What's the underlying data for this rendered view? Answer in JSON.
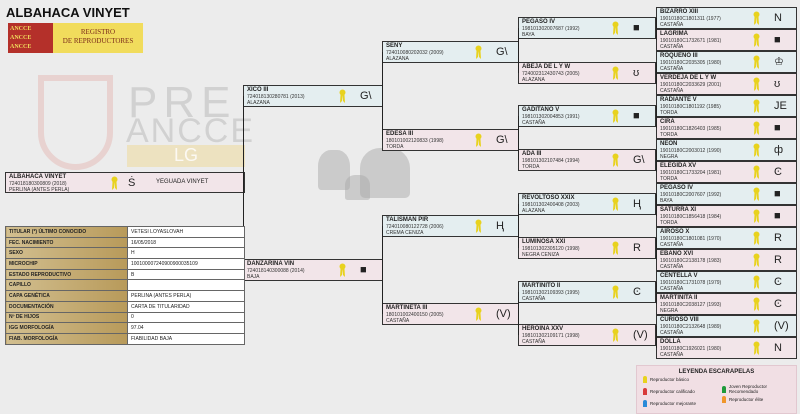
{
  "title": "ALBAHACA VINYET",
  "logo": {
    "flags": [
      "ANCCE",
      "ANCCE",
      "ANCCE"
    ],
    "line1": "REGISTRO",
    "line2": "DE REPRODUCTORES"
  },
  "watermark": {
    "pre": "PRE",
    "ancce": "ANCCE",
    "lg": "LG"
  },
  "subject": {
    "name": "ALBAHACA VINYET",
    "reg": "724018180300809 (2018)",
    "coat": "PERLINA (ANTES PERLA)",
    "brand": "s",
    "breeder": "YEGUADA VINYET",
    "sex": "f"
  },
  "info": [
    {
      "k": "TITULAR (*) ÚLTIMO CONOCIDO",
      "v": "VETESI LOYASLOVAH"
    },
    {
      "k": "FEC. NACIMIENTO",
      "v": "16/05/2018"
    },
    {
      "k": "SEXO",
      "v": "H"
    },
    {
      "k": "MICROCHIP",
      "v": "100100007240900900035109"
    },
    {
      "k": "ESTADO REPRODUCTIVO",
      "v": "B"
    },
    {
      "k": "CAPILLO",
      "v": ""
    },
    {
      "k": "CAPA GENÉTICA",
      "v": "PERLINA (ANTES PERLA)"
    },
    {
      "k": "DOCUMENTACIÓN",
      "v": "CARTA DE TITULARIDAD"
    },
    {
      "k": "Nº DE HIJOS",
      "v": "0"
    },
    {
      "k": "IGG MORFOLOGÍA",
      "v": "97.04"
    },
    {
      "k": "FIAB. MORFOLOGÍA",
      "v": "FIABILIDAD BAJA"
    }
  ],
  "gen1": [
    {
      "name": "XICO III",
      "reg": "724018130280781 (2013)",
      "coat": "ALAZANA",
      "brand": "ga",
      "sex": "m"
    },
    {
      "name": "DANZARINA VIN",
      "reg": "724018140300088 (2014)",
      "coat": "BAJA",
      "brand": "square",
      "sex": "f"
    }
  ],
  "gen2": [
    {
      "name": "SENY",
      "reg": "724010080202032 (2009)",
      "coat": "ALAZANA",
      "brand": "ga",
      "sex": "m"
    },
    {
      "name": "EDESA III",
      "reg": "180101002120833 (1998)",
      "coat": "TORDA",
      "brand": "ga",
      "sex": "f"
    },
    {
      "name": "TALISMAN PIR",
      "reg": "724010080122728 (2006)",
      "coat": "CREMA CENIZA",
      "brand": "h",
      "sex": "m"
    },
    {
      "name": "MARTINETA III",
      "reg": "180101002400150 (2005)",
      "coat": "CASTAÑA",
      "brand": "v2",
      "sex": "f"
    }
  ],
  "gen3": [
    {
      "name": "PEGASO IV",
      "reg": "198101302007687 (1992)",
      "coat": "BAYA",
      "brand": "square",
      "sex": "m"
    },
    {
      "name": "ABEJA DE L Y W",
      "reg": "724002312430743 (2005)",
      "coat": "ALAZANA",
      "brand": "lyre",
      "sex": "f"
    },
    {
      "name": "GADITANO V",
      "reg": "198101302004853 (1991)",
      "coat": "CASTAÑA",
      "brand": "square",
      "sex": "m"
    },
    {
      "name": "ADA III",
      "reg": "198101302107484 (1994)",
      "coat": "TORDA",
      "brand": "ga",
      "sex": "f"
    },
    {
      "name": "REVOLTOSO XXIX",
      "reg": "198101302400408 (2003)",
      "coat": "ALAZANA",
      "brand": "h",
      "sex": "m"
    },
    {
      "name": "LUMINOSA XXI",
      "reg": "198101302305120 (1998)",
      "coat": "NEGRA CENIZA",
      "brand": "r",
      "sex": "f"
    },
    {
      "name": "MARTINITO II",
      "reg": "198101302109393 (1995)",
      "coat": "CASTAÑA",
      "brand": "c",
      "sex": "m"
    },
    {
      "name": "HEROINA XXV",
      "reg": "198101302109171 (1998)",
      "coat": "CASTAÑA",
      "brand": "v2",
      "sex": "f"
    }
  ],
  "gen4": [
    {
      "name": "BIZARRO XIII",
      "reg": "19010180C1801311 (1977)",
      "coat": "CASTAÑA",
      "brand": "n",
      "sex": "m"
    },
    {
      "name": "LAGRIMA",
      "reg": "19010180C1732671 (1981)",
      "coat": "CASTAÑA",
      "brand": "square",
      "sex": "f"
    },
    {
      "name": "ROQUEÑO III",
      "reg": "19010180C2035305 (1980)",
      "coat": "CASTAÑA",
      "brand": "crown",
      "sex": "m"
    },
    {
      "name": "VERDEJA DE L Y W",
      "reg": "19010180C2033629 (2001)",
      "coat": "CASTAÑA",
      "brand": "lyre",
      "sex": "f"
    },
    {
      "name": "RADIANTE V",
      "reg": "19010180C1801192 (1985)",
      "coat": "TORDA",
      "brand": "je",
      "sex": "m"
    },
    {
      "name": "CIRA",
      "reg": "19010180C1826403 (1985)",
      "coat": "TORDA",
      "brand": "square",
      "sex": "f"
    },
    {
      "name": "NEON",
      "reg": "19010180C2003012 (1990)",
      "coat": "NEGRA",
      "brand": "phi",
      "sex": "m"
    },
    {
      "name": "ELEGIDA XV",
      "reg": "19010180C1733204 (1981)",
      "coat": "TORDA",
      "brand": "c",
      "sex": "f"
    },
    {
      "name": "PEGASO IV",
      "reg": "19010180C2007607 (1992)",
      "coat": "BAYA",
      "brand": "square",
      "sex": "m"
    },
    {
      "name": "SATURRA XI",
      "reg": "19010180C1856418 (1984)",
      "coat": "TORDA",
      "brand": "square",
      "sex": "f"
    },
    {
      "name": "AIROSO X",
      "reg": "19010180C1801081 (1970)",
      "coat": "CASTAÑA",
      "brand": "r",
      "sex": "m"
    },
    {
      "name": "EBANO XVI",
      "reg": "19010180C2138178 (1983)",
      "coat": "CASTAÑA",
      "brand": "r",
      "sex": "f"
    },
    {
      "name": "CENTELLA V",
      "reg": "19010180C1731078 (1979)",
      "coat": "CASTAÑA",
      "brand": "c",
      "sex": "m"
    },
    {
      "name": "MARTINITA II",
      "reg": "19010180C2038127 (1993)",
      "coat": "NEGRA",
      "brand": "c",
      "sex": "f"
    },
    {
      "name": "CURIOSO VIII",
      "reg": "19010180C2132648 (1989)",
      "coat": "CASTAÑA",
      "brand": "v2",
      "sex": "m"
    },
    {
      "name": "DOLLA",
      "reg": "19010180C1926021 (1980)",
      "coat": "CASTAÑA",
      "brand": "n",
      "sex": "f"
    }
  ],
  "legend": {
    "title": "LEYENDA ESCARAPELAS",
    "items": [
      {
        "label": "Reproductor básico",
        "color": "#e8d21e"
      },
      {
        "label": "Reproductor calificado",
        "color": "#d83a3a"
      },
      {
        "label": "Reproductor mejorante",
        "color": "#2a8ad8"
      },
      {
        "label": "Joven Reproductor Recomendado",
        "color": "#1e9a3a"
      },
      {
        "label": "Reproductor élite",
        "color": "#f0962a"
      }
    ]
  },
  "colors": {
    "ribbon": "#e8d21e",
    "male_bg": "#e4eef0",
    "female_bg": "#f2e5e9"
  }
}
